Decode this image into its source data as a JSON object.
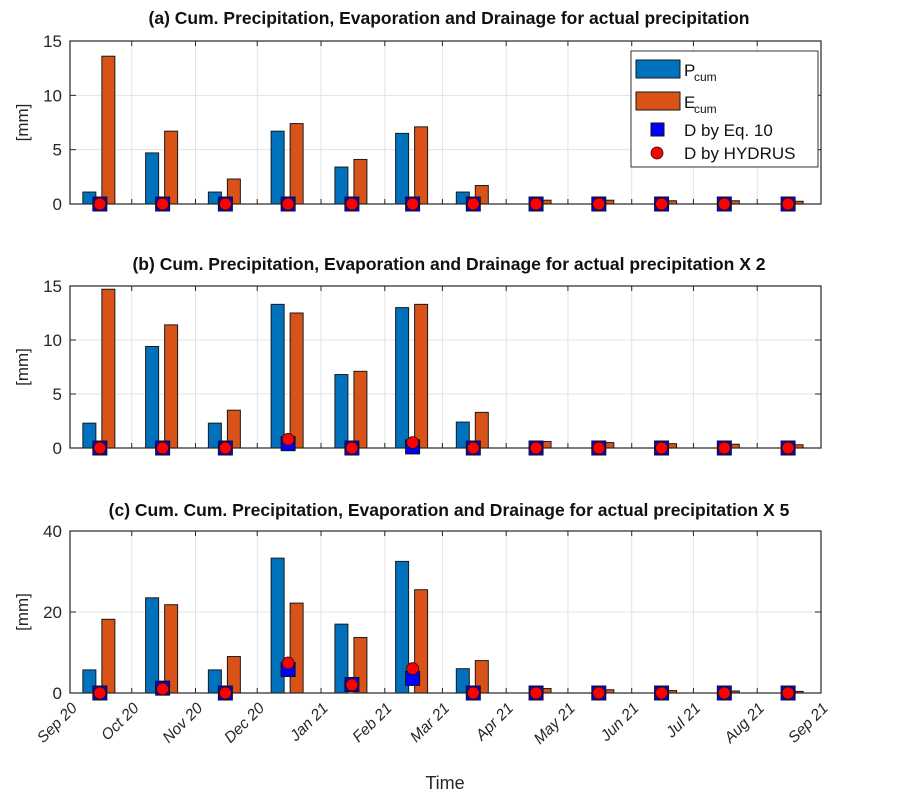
{
  "chart_data": [
    {
      "type": "bar",
      "title": "(a) Cum. Precipitation, Evaporation and Drainage for actual precipitation",
      "ylabel": "[mm]",
      "ylim": [
        0,
        15
      ],
      "yticks": [
        0,
        5,
        10,
        15
      ],
      "grid": true,
      "categories": [
        "Sep 20",
        "Oct 20",
        "Nov 20",
        "Dec 20",
        "Jan 21",
        "Feb 21",
        "Mar 21",
        "Apr 21",
        "May 21",
        "Jun 21",
        "Jul 21",
        "Aug 21"
      ],
      "series": [
        {
          "name": "P_cum",
          "kind": "bar",
          "values": [
            1.1,
            4.7,
            1.1,
            6.7,
            3.4,
            6.5,
            1.1,
            0.0,
            0.0,
            0.0,
            0.0,
            0.0
          ]
        },
        {
          "name": "E_cum",
          "kind": "bar",
          "values": [
            13.6,
            6.7,
            2.3,
            7.4,
            4.1,
            7.1,
            1.7,
            0.35,
            0.35,
            0.3,
            0.3,
            0.25
          ]
        },
        {
          "name": "D by Eq. 10",
          "kind": "marker-square",
          "values": [
            0,
            0,
            0,
            0,
            0,
            0,
            0,
            0,
            0,
            0,
            0,
            0
          ]
        },
        {
          "name": "D by HYDRUS",
          "kind": "marker-circle",
          "values": [
            0,
            0,
            0,
            0,
            0,
            0,
            0,
            0,
            0,
            0,
            0,
            0
          ]
        }
      ],
      "legend": {
        "placement": "top-right",
        "entries": [
          {
            "main": "P",
            "sub": "cum"
          },
          {
            "main": "E",
            "sub": "cum"
          },
          {
            "main": "D by Eq. 10",
            "sub": ""
          },
          {
            "main": "D by HYDRUS",
            "sub": ""
          }
        ]
      }
    },
    {
      "type": "bar",
      "title": "(b) Cum. Precipitation, Evaporation and Drainage for actual precipitation X 2",
      "ylabel": "[mm]",
      "ylim": [
        0,
        15
      ],
      "yticks": [
        0,
        5,
        10,
        15
      ],
      "grid": true,
      "categories": [
        "Sep 20",
        "Oct 20",
        "Nov 20",
        "Dec 20",
        "Jan 21",
        "Feb 21",
        "Mar 21",
        "Apr 21",
        "May 21",
        "Jun 21",
        "Jul 21",
        "Aug 21"
      ],
      "series": [
        {
          "name": "P_cum",
          "kind": "bar",
          "values": [
            2.3,
            9.4,
            2.3,
            13.3,
            6.8,
            13.0,
            2.4,
            0.0,
            0.0,
            0.0,
            0.0,
            0.0
          ]
        },
        {
          "name": "E_cum",
          "kind": "bar",
          "values": [
            14.7,
            11.4,
            3.5,
            12.5,
            7.1,
            13.3,
            3.3,
            0.6,
            0.5,
            0.4,
            0.35,
            0.3
          ]
        },
        {
          "name": "D by Eq. 10",
          "kind": "marker-square",
          "values": [
            0,
            0,
            0,
            0.4,
            0,
            0.1,
            0,
            0,
            0,
            0,
            0,
            0
          ]
        },
        {
          "name": "D by HYDRUS",
          "kind": "marker-circle",
          "values": [
            0,
            0,
            0,
            0.8,
            0,
            0.5,
            0,
            0,
            0,
            0,
            0,
            0
          ]
        }
      ]
    },
    {
      "type": "bar",
      "title": "(c) Cum. Cum. Precipitation, Evaporation and Drainage for actual precipitation X 5",
      "ylabel": "[mm]",
      "xlabel": "Time",
      "ylim": [
        0,
        40
      ],
      "yticks": [
        0,
        20,
        40
      ],
      "grid": true,
      "categories": [
        "Sep 20",
        "Oct 20",
        "Nov 20",
        "Dec 20",
        "Jan 21",
        "Feb 21",
        "Mar 21",
        "Apr 21",
        "May 21",
        "Jun 21",
        "Jul 21",
        "Aug 21"
      ],
      "xticklabels": [
        "Sep 20",
        "Oct 20",
        "Nov 20",
        "Dec 20",
        "Jan 21",
        "Feb 21",
        "Mar 21",
        "Apr 21",
        "May 21",
        "Jun 21",
        "Jul 21",
        "Aug 21",
        "Sep 21"
      ],
      "series": [
        {
          "name": "P_cum",
          "kind": "bar",
          "values": [
            5.7,
            23.5,
            5.7,
            33.3,
            17.0,
            32.5,
            6.0,
            0.0,
            0.0,
            0.0,
            0.0,
            0.0
          ]
        },
        {
          "name": "E_cum",
          "kind": "bar",
          "values": [
            18.2,
            21.8,
            9.0,
            22.2,
            13.7,
            25.5,
            8.0,
            1.1,
            0.8,
            0.6,
            0.5,
            0.4
          ]
        },
        {
          "name": "D by Eq. 10",
          "kind": "marker-square",
          "values": [
            0,
            1.2,
            0,
            5.8,
            2.1,
            3.6,
            0,
            0,
            0,
            0,
            0,
            0
          ]
        },
        {
          "name": "D by HYDRUS",
          "kind": "marker-circle",
          "values": [
            0,
            1.0,
            0,
            7.4,
            2.0,
            6.0,
            0,
            0,
            0,
            0,
            0,
            0
          ]
        }
      ]
    }
  ],
  "colors": {
    "P_cum": "#0072BD",
    "E_cum": "#D95319",
    "square": "#0000FF",
    "circle": "#FF0000"
  }
}
